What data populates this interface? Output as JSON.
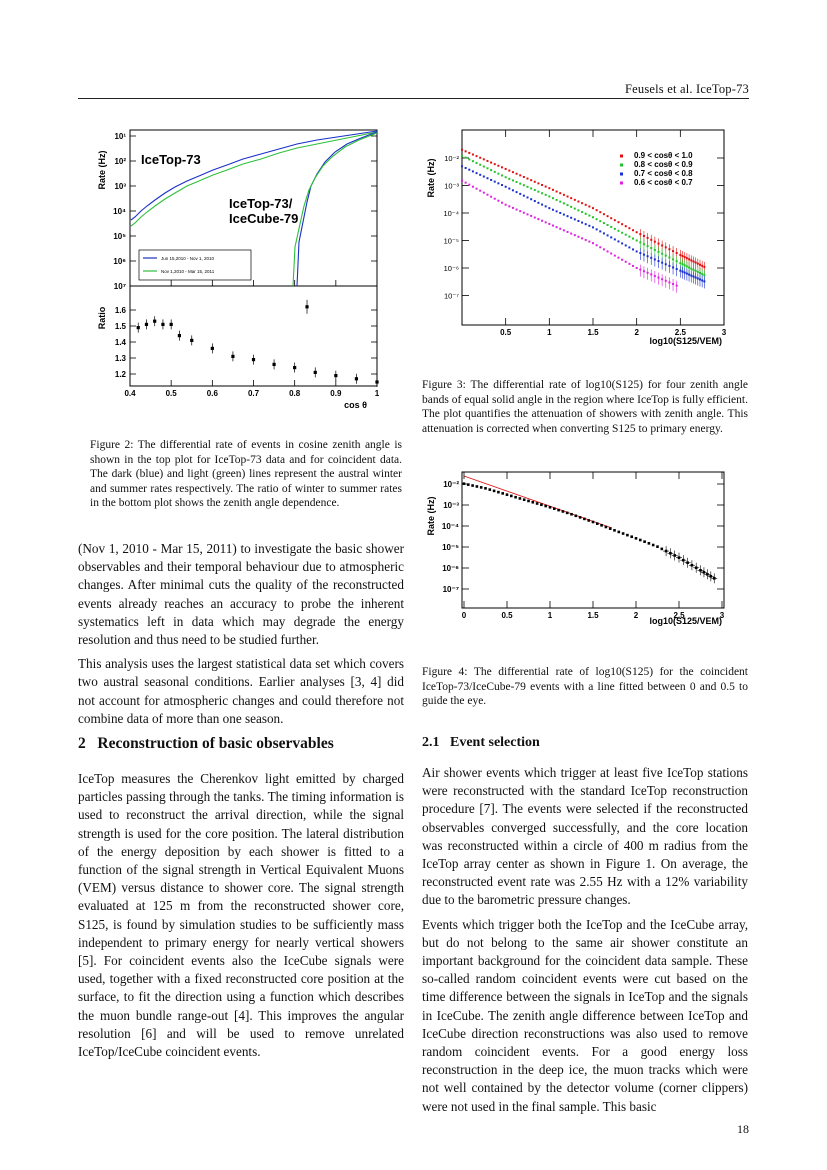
{
  "header": {
    "text": "Feusels et al. IceTop-73"
  },
  "page_number": "18",
  "figure2": {
    "caption": "Figure 2: The differential rate of events in cosine zenith angle is shown in the top plot for IceTop-73 data and for coincident data. The dark (blue) and light (green) lines represent the austral winter and summer rates respectively. The ratio of winter to summer rates in the bottom plot shows the zenith angle dependence.",
    "top_ylabel": "Rate (Hz)",
    "bottom_ylabel": "Ratio",
    "xlabel": "cos θ",
    "top_yticks": [
      "10¹",
      "10²",
      "10³",
      "10⁴",
      "10⁵",
      "10⁶",
      "10⁷"
    ],
    "ratio_yticks": [
      "1.6",
      "1.5",
      "1.4",
      "1.3",
      "1.2"
    ],
    "xticks": [
      "0.4",
      "0.5",
      "0.6",
      "0.7",
      "0.8",
      "0.9",
      "1"
    ],
    "label_it": "IceTop-73",
    "label_ic_line1": "IceTop-73/",
    "label_ic_line2": "IceCube-79",
    "legend": [
      "Jun 15,2010 - Nov 1, 2010",
      "Nov 1,2010 - Mar 15, 2011"
    ],
    "colors": {
      "winter": "#1a2fc9",
      "summer": "#2fbf3a"
    }
  },
  "figure3": {
    "caption": "Figure 3: The differential rate of log10(S125) for four zenith angle bands of equal solid angle in the region where IceTop is fully efficient. The plot quantifies the attenuation of showers with zenith angle. This attenuation is corrected when converting S125 to primary energy.",
    "ylabel": "Rate (Hz)",
    "xlabel": "log10(S125/VEM)",
    "yticks": [
      "10⁻²",
      "10⁻³",
      "10⁻⁴",
      "10⁻⁵",
      "10⁻⁶",
      "10⁻⁷"
    ],
    "xticks": [
      "0.5",
      "1",
      "1.5",
      "2",
      "2.5",
      "3"
    ],
    "legend": [
      "0.9 < cosθ < 1.0",
      "0.8 < cosθ < 0.9",
      "0.7 < cosθ < 0.8",
      "0.6 < cosθ < 0.7"
    ],
    "colors": [
      "#e01010",
      "#22c22a",
      "#1a2fd0",
      "#e020e0"
    ]
  },
  "figure4": {
    "caption": "Figure 4: The differential rate of log10(S125) for the coincident IceTop-73/IceCube-79 events with a line fitted between 0 and 0.5 to guide the eye.",
    "ylabel": "Rate (Hz)",
    "xlabel": "log10(S125/VEM)",
    "yticks": [
      "10⁻²",
      "10⁻³",
      "10⁻⁴",
      "10⁻⁵",
      "10⁻⁶",
      "10⁻⁷"
    ],
    "xticks": [
      "0",
      "0.5",
      "1",
      "1.5",
      "2",
      "2.5",
      "3"
    ],
    "fit_color": "#e01010"
  },
  "left_col": {
    "p1": "(Nov 1, 2010 - Mar 15, 2011) to investigate the basic shower observables and their temporal behaviour due to atmospheric changes. After minimal cuts the quality of the reconstructed events already reaches an accuracy to probe the inherent systematics left in data which may degrade the energy resolution and thus need to be studied further.",
    "p2": "This analysis uses the largest statistical data set which covers two austral seasonal conditions. Earlier analyses [3, 4] did not account for atmospheric changes and could therefore not combine data of more than one season.",
    "sec2_num": "2",
    "sec2_title": "Reconstruction of basic observables",
    "p3": "IceTop measures the Cherenkov light emitted by charged particles passing through the tanks. The timing information is used to reconstruct the arrival direction, while the signal strength is used for the core position. The lateral distribution of the energy deposition by each shower is fitted to a function of the signal strength in Vertical Equivalent Muons (VEM) versus distance to shower core. The signal strength evaluated at 125 m from the reconstructed shower core, S125, is found by simulation studies to be sufficiently mass independent to primary energy for nearly vertical showers [5]. For coincident events also the IceCube signals were used, together with a fixed reconstructed core position at the surface, to fit the direction using a function which describes the muon bundle range-out [4]. This improves the angular resolution [6] and will be used to remove unrelated IceTop/IceCube coincident events."
  },
  "right_col": {
    "sub_num": "2.1",
    "sub_title": "Event selection",
    "p1": "Air shower events which trigger at least five IceTop stations were reconstructed with the standard IceTop reconstruction procedure [7]. The events were selected if the reconstructed observables converged successfully, and the core location was reconstructed within a circle of 400 m radius from the IceTop array center as shown in Figure 1. On average, the reconstructed event rate was 2.55 Hz with a 12% variability due to the barometric pressure changes.",
    "p2": "Events which trigger both the IceTop and the IceCube array, but do not belong to the same air shower constitute an important background for the coincident data sample. These so-called random coincident events were cut based on the time difference between the signals in IceTop and the signals in IceCube. The zenith angle difference between IceTop and IceCube direction reconstructions was also used to remove random coincident events. For a good energy loss reconstruction in the deep ice, the muon tracks which were not well contained by the detector volume (corner clippers) were not used in the final sample. This basic"
  },
  "chart_data": [
    {
      "type": "line",
      "panel": "figure2-top",
      "x_label": "cos θ",
      "y_label": "Rate (Hz)",
      "xlim": [
        0.4,
        1.0
      ],
      "y_scale": "log",
      "series": [
        {
          "name": "Jun 15,2010 - Nov 1, 2010",
          "x": [
            0.4,
            0.5,
            0.6,
            0.7,
            0.8,
            0.9,
            1.0
          ],
          "y": [
            3000,
            12000,
            22000,
            35000,
            55000,
            80000,
            100000
          ]
        },
        {
          "name": "Nov 1,2010 - Mar 15, 2011",
          "x": [
            0.4,
            0.5,
            0.6,
            0.7,
            0.8,
            0.9,
            1.0
          ],
          "y": [
            2000,
            9000,
            18000,
            30000,
            48000,
            72000,
            100000
          ]
        }
      ]
    },
    {
      "type": "scatter",
      "panel": "figure2-bottom",
      "y_label": "Ratio",
      "xlim": [
        0.4,
        1.0
      ],
      "ylim": [
        1.1,
        1.7
      ],
      "x": [
        0.42,
        0.44,
        0.46,
        0.48,
        0.5,
        0.52,
        0.55,
        0.6,
        0.65,
        0.7,
        0.75,
        0.8,
        0.85,
        0.9,
        0.95,
        1.0
      ],
      "y": [
        1.49,
        1.51,
        1.53,
        1.51,
        1.51,
        1.44,
        1.41,
        1.36,
        1.31,
        1.29,
        1.26,
        1.24,
        1.21,
        1.19,
        1.17,
        1.15
      ]
    },
    {
      "type": "scatter",
      "panel": "figure3",
      "x_label": "log10(S125/VEM)",
      "y_label": "Rate (Hz)",
      "xlim": [
        0.0,
        3.0
      ],
      "y_scale": "log",
      "series": [
        {
          "name": "0.9 < cosθ < 1.0",
          "x": [
            0.0,
            0.5,
            1.0,
            1.5,
            2.0,
            2.5,
            2.8
          ],
          "y": [
            0.02,
            0.004,
            0.0008,
            0.00015,
            2e-05,
            3e-06,
            1e-06
          ]
        },
        {
          "name": "0.8 < cosθ < 0.9",
          "x": [
            0.0,
            0.5,
            1.0,
            1.5,
            2.0,
            2.5,
            2.8
          ],
          "y": [
            0.012,
            0.002,
            0.0004,
            7e-05,
            1e-05,
            1.5e-06,
            5e-07
          ]
        },
        {
          "name": "0.7 < cosθ < 0.8",
          "x": [
            0.0,
            0.5,
            1.0,
            1.5,
            2.0,
            2.5,
            2.8
          ],
          "y": [
            0.005,
            0.0009,
            0.00015,
            3e-05,
            4e-06,
            8e-07,
            3e-07
          ]
        },
        {
          "name": "0.6 < cosθ < 0.7",
          "x": [
            0.0,
            0.5,
            1.0,
            1.5,
            2.0,
            2.5
          ],
          "y": [
            0.0015,
            0.0002,
            4e-05,
            8e-06,
            1e-06,
            2e-07
          ]
        }
      ]
    },
    {
      "type": "scatter",
      "panel": "figure4",
      "x_label": "log10(S125/VEM)",
      "y_label": "Rate (Hz)",
      "xlim": [
        0.0,
        3.0
      ],
      "y_scale": "log",
      "x": [
        0.0,
        0.25,
        0.5,
        0.75,
        1.0,
        1.25,
        1.5,
        1.75,
        2.0,
        2.25,
        2.5,
        2.75,
        2.95
      ],
      "y": [
        0.02,
        0.012,
        0.006,
        0.003,
        0.0015,
        0.0007,
        0.0003,
        0.00012,
        5e-05,
        2e-05,
        6e-06,
        1.5e-06,
        5e-07
      ]
    }
  ]
}
